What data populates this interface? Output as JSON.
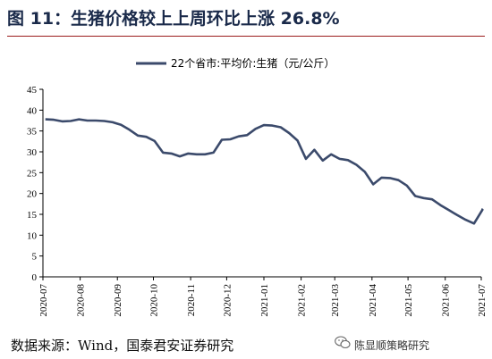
{
  "figure": {
    "title": "图 11：生猪价格较上上周环比上涨 26.8%",
    "source": "数据来源：Wind，国泰君安证券研究",
    "watermark": "陈显顺策略研究"
  },
  "chart_data": {
    "type": "line",
    "title": "图 11：生猪价格较上上周环比上涨 26.8%",
    "xlabel": "",
    "ylabel": "",
    "ylim": [
      0,
      45
    ],
    "yticks": [
      0,
      5,
      10,
      15,
      20,
      25,
      30,
      35,
      40,
      45
    ],
    "xtick_labels": [
      "2020-07",
      "2020-08",
      "2020-09",
      "2020-10",
      "2020-11",
      "2020-12",
      "2021-01",
      "2021-02",
      "2021-03",
      "2021-04",
      "2021-05",
      "2021-06",
      "2021-07"
    ],
    "legend": "top-center",
    "grid": false,
    "color": "#3b4a6b",
    "series": [
      {
        "name": "22个省市:平均价:生猪（元/公斤）",
        "x": [
          "2020-07-03",
          "2020-07-10",
          "2020-07-17",
          "2020-07-24",
          "2020-07-31",
          "2020-08-07",
          "2020-08-14",
          "2020-08-21",
          "2020-08-28",
          "2020-09-04",
          "2020-09-11",
          "2020-09-18",
          "2020-09-25",
          "2020-10-02",
          "2020-10-09",
          "2020-10-16",
          "2020-10-23",
          "2020-10-30",
          "2020-11-06",
          "2020-11-13",
          "2020-11-20",
          "2020-11-27",
          "2020-12-04",
          "2020-12-11",
          "2020-12-18",
          "2020-12-25",
          "2021-01-01",
          "2021-01-08",
          "2021-01-15",
          "2021-01-22",
          "2021-01-29",
          "2021-02-05",
          "2021-02-12",
          "2021-02-19",
          "2021-02-26",
          "2021-03-05",
          "2021-03-12",
          "2021-03-19",
          "2021-03-26",
          "2021-04-02",
          "2021-04-09",
          "2021-04-16",
          "2021-04-23",
          "2021-04-30",
          "2021-05-07",
          "2021-05-14",
          "2021-05-21",
          "2021-05-28",
          "2021-06-04",
          "2021-06-11",
          "2021-06-18",
          "2021-06-25",
          "2021-07-02"
        ],
        "values": [
          37.8,
          37.7,
          37.3,
          37.4,
          37.8,
          37.5,
          37.5,
          37.4,
          37.1,
          36.5,
          35.3,
          33.9,
          33.6,
          32.6,
          29.8,
          29.6,
          28.9,
          29.6,
          29.4,
          29.4,
          29.8,
          32.9,
          33.0,
          33.7,
          34.0,
          35.5,
          36.4,
          36.3,
          35.9,
          34.5,
          32.7,
          28.3,
          30.5,
          27.9,
          29.4,
          28.3,
          28.0,
          26.9,
          25.2,
          22.2,
          23.8,
          23.7,
          23.2,
          21.9,
          19.4,
          18.9,
          18.6,
          17.2,
          16.0,
          14.8,
          13.7,
          12.8,
          16.1
        ]
      }
    ],
    "x_end_extra": "2021-07-09",
    "y_end_extra": 16.2
  }
}
